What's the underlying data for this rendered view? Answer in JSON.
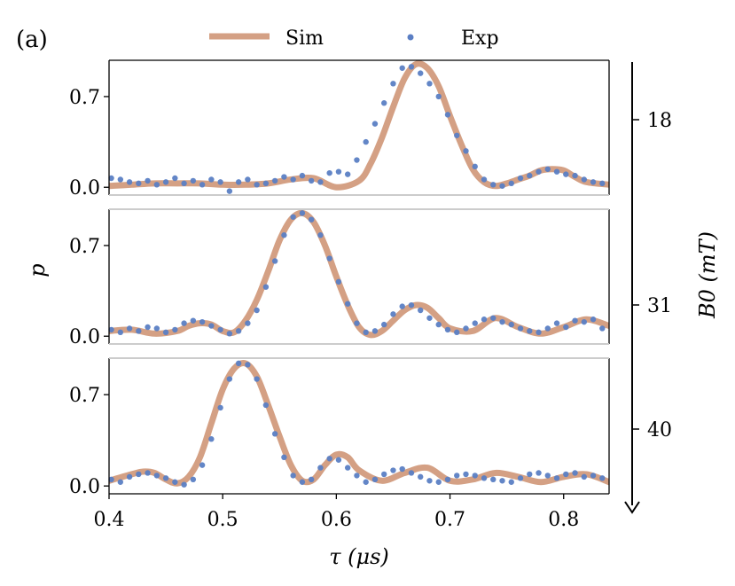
{
  "figure": {
    "panel_label": "(a)",
    "legend": {
      "sim_label": "Sim",
      "exp_label": "Exp"
    },
    "colors": {
      "sim": "#d4a084",
      "exp": "#5b7fc4",
      "axis": "#000000",
      "panel_sep": "#cccccc"
    },
    "xlabel": "τ (μs)",
    "ylabel": "p",
    "right_axis_label": "B0 (mT)",
    "right_axis_ticks": [
      "18",
      "31",
      "40"
    ]
  },
  "chart_data": {
    "type": "line",
    "title": "",
    "xlim": [
      0.4,
      0.84
    ],
    "xticks": [
      0.4,
      0.5,
      0.6,
      0.7,
      0.8
    ],
    "xtick_labels": [
      "0.4",
      "0.5",
      "0.6",
      "0.7",
      "0.8"
    ],
    "ylim": [
      -0.06,
      0.98
    ],
    "yticks": [
      0.0,
      0.7
    ],
    "ytick_labels": [
      "0.0",
      "0.7"
    ],
    "panels": [
      {
        "name": "B0 = 18 mT",
        "b0_mT": 18,
        "sim": {
          "x": [
            0.4,
            0.42,
            0.44,
            0.46,
            0.48,
            0.5,
            0.52,
            0.54,
            0.56,
            0.58,
            0.6,
            0.62,
            0.63,
            0.64,
            0.65,
            0.66,
            0.67,
            0.68,
            0.69,
            0.7,
            0.71,
            0.72,
            0.73,
            0.74,
            0.75,
            0.76,
            0.77,
            0.78,
            0.79,
            0.8,
            0.81,
            0.82,
            0.84
          ],
          "y": [
            0.01,
            0.02,
            0.03,
            0.03,
            0.03,
            0.02,
            0.02,
            0.03,
            0.06,
            0.07,
            0.0,
            0.05,
            0.18,
            0.38,
            0.62,
            0.84,
            0.95,
            0.92,
            0.78,
            0.55,
            0.33,
            0.14,
            0.04,
            0.01,
            0.03,
            0.06,
            0.09,
            0.13,
            0.14,
            0.13,
            0.08,
            0.04,
            0.02
          ]
        },
        "exp": {
          "x": [
            0.402,
            0.41,
            0.418,
            0.426,
            0.434,
            0.442,
            0.45,
            0.458,
            0.466,
            0.474,
            0.482,
            0.49,
            0.498,
            0.506,
            0.514,
            0.522,
            0.53,
            0.538,
            0.546,
            0.554,
            0.562,
            0.57,
            0.578,
            0.586,
            0.594,
            0.602,
            0.61,
            0.618,
            0.626,
            0.634,
            0.642,
            0.65,
            0.658,
            0.666,
            0.674,
            0.682,
            0.69,
            0.698,
            0.706,
            0.714,
            0.722,
            0.73,
            0.738,
            0.746,
            0.754,
            0.762,
            0.77,
            0.778,
            0.786,
            0.794,
            0.802,
            0.81,
            0.818,
            0.826,
            0.834
          ],
          "y": [
            0.07,
            0.06,
            0.04,
            0.03,
            0.05,
            0.02,
            0.04,
            0.07,
            0.03,
            0.05,
            0.02,
            0.06,
            0.04,
            -0.03,
            0.04,
            0.06,
            0.02,
            0.03,
            0.05,
            0.08,
            0.06,
            0.09,
            0.05,
            0.04,
            0.11,
            0.12,
            0.1,
            0.21,
            0.35,
            0.49,
            0.65,
            0.8,
            0.92,
            0.93,
            0.88,
            0.8,
            0.7,
            0.56,
            0.4,
            0.28,
            0.16,
            0.06,
            0.02,
            0.01,
            0.03,
            0.07,
            0.09,
            0.12,
            0.14,
            0.12,
            0.1,
            0.09,
            0.06,
            0.04,
            0.03
          ]
        }
      },
      {
        "name": "B0 = 31 mT",
        "b0_mT": 31,
        "sim": {
          "x": [
            0.4,
            0.42,
            0.44,
            0.46,
            0.47,
            0.48,
            0.49,
            0.5,
            0.51,
            0.52,
            0.53,
            0.54,
            0.55,
            0.56,
            0.57,
            0.58,
            0.59,
            0.6,
            0.61,
            0.62,
            0.63,
            0.64,
            0.65,
            0.66,
            0.67,
            0.68,
            0.69,
            0.7,
            0.72,
            0.74,
            0.76,
            0.78,
            0.8,
            0.82,
            0.84
          ],
          "y": [
            0.04,
            0.05,
            0.02,
            0.04,
            0.08,
            0.1,
            0.09,
            0.04,
            0.03,
            0.12,
            0.28,
            0.5,
            0.74,
            0.9,
            0.95,
            0.88,
            0.7,
            0.46,
            0.24,
            0.07,
            0.01,
            0.04,
            0.12,
            0.2,
            0.24,
            0.22,
            0.14,
            0.06,
            0.04,
            0.14,
            0.07,
            0.02,
            0.07,
            0.13,
            0.08
          ]
        },
        "exp": {
          "x": [
            0.402,
            0.41,
            0.418,
            0.426,
            0.434,
            0.442,
            0.45,
            0.458,
            0.466,
            0.474,
            0.482,
            0.49,
            0.498,
            0.506,
            0.514,
            0.522,
            0.53,
            0.538,
            0.546,
            0.554,
            0.562,
            0.57,
            0.578,
            0.586,
            0.594,
            0.602,
            0.61,
            0.618,
            0.626,
            0.634,
            0.642,
            0.65,
            0.658,
            0.666,
            0.674,
            0.682,
            0.69,
            0.698,
            0.706,
            0.714,
            0.722,
            0.73,
            0.738,
            0.746,
            0.754,
            0.762,
            0.77,
            0.778,
            0.786,
            0.794,
            0.802,
            0.81,
            0.818,
            0.826,
            0.834
          ],
          "y": [
            0.05,
            0.03,
            0.06,
            0.04,
            0.07,
            0.06,
            0.03,
            0.05,
            0.1,
            0.12,
            0.11,
            0.08,
            0.05,
            0.02,
            0.04,
            0.1,
            0.2,
            0.38,
            0.58,
            0.78,
            0.92,
            0.95,
            0.9,
            0.78,
            0.6,
            0.42,
            0.25,
            0.1,
            0.03,
            0.04,
            0.09,
            0.17,
            0.23,
            0.24,
            0.2,
            0.14,
            0.09,
            0.05,
            0.03,
            0.06,
            0.1,
            0.13,
            0.14,
            0.11,
            0.09,
            0.06,
            0.04,
            0.03,
            0.06,
            0.1,
            0.07,
            0.12,
            0.11,
            0.13,
            0.06
          ]
        }
      },
      {
        "name": "B0 = 40 mT",
        "b0_mT": 40,
        "sim": {
          "x": [
            0.4,
            0.42,
            0.43,
            0.44,
            0.45,
            0.46,
            0.47,
            0.48,
            0.49,
            0.5,
            0.51,
            0.52,
            0.53,
            0.54,
            0.55,
            0.56,
            0.57,
            0.58,
            0.59,
            0.6,
            0.61,
            0.62,
            0.64,
            0.66,
            0.68,
            0.7,
            0.72,
            0.74,
            0.76,
            0.78,
            0.8,
            0.82,
            0.84
          ],
          "y": [
            0.04,
            0.09,
            0.11,
            0.1,
            0.05,
            0.02,
            0.07,
            0.22,
            0.48,
            0.74,
            0.9,
            0.94,
            0.84,
            0.62,
            0.38,
            0.16,
            0.04,
            0.05,
            0.16,
            0.24,
            0.22,
            0.12,
            0.04,
            0.1,
            0.14,
            0.04,
            0.05,
            0.1,
            0.07,
            0.03,
            0.07,
            0.09,
            0.03
          ]
        },
        "exp": {
          "x": [
            0.402,
            0.41,
            0.418,
            0.426,
            0.434,
            0.442,
            0.45,
            0.458,
            0.466,
            0.474,
            0.482,
            0.49,
            0.498,
            0.506,
            0.514,
            0.522,
            0.53,
            0.538,
            0.546,
            0.554,
            0.562,
            0.57,
            0.578,
            0.586,
            0.594,
            0.602,
            0.61,
            0.618,
            0.626,
            0.634,
            0.642,
            0.65,
            0.658,
            0.666,
            0.674,
            0.682,
            0.69,
            0.698,
            0.706,
            0.714,
            0.722,
            0.73,
            0.738,
            0.746,
            0.754,
            0.762,
            0.77,
            0.778,
            0.786,
            0.794,
            0.802,
            0.81,
            0.818,
            0.826,
            0.834
          ],
          "y": [
            0.05,
            0.03,
            0.07,
            0.09,
            0.1,
            0.08,
            0.06,
            0.03,
            0.01,
            0.05,
            0.16,
            0.36,
            0.6,
            0.82,
            0.94,
            0.93,
            0.82,
            0.62,
            0.4,
            0.22,
            0.08,
            0.03,
            0.05,
            0.14,
            0.21,
            0.2,
            0.14,
            0.08,
            0.03,
            0.05,
            0.09,
            0.12,
            0.13,
            0.1,
            0.07,
            0.04,
            0.03,
            0.05,
            0.08,
            0.09,
            0.08,
            0.06,
            0.05,
            0.04,
            0.03,
            0.06,
            0.09,
            0.1,
            0.08,
            0.06,
            0.09,
            0.1,
            0.07,
            0.08,
            0.06
          ]
        }
      }
    ]
  }
}
